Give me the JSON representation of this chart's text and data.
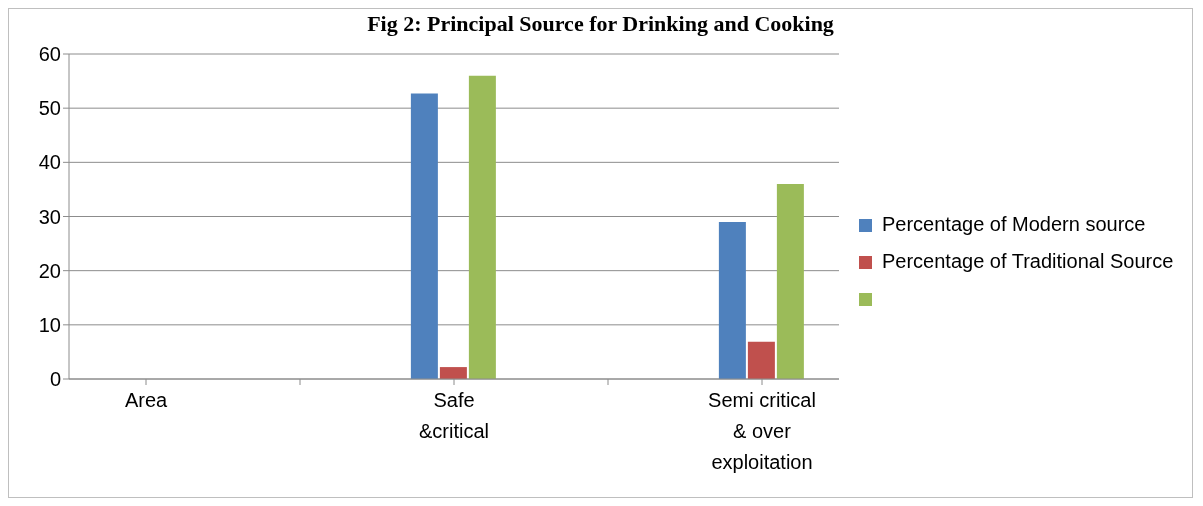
{
  "chart_data": {
    "type": "bar",
    "title": "Fig 2: Principal Source for Drinking and Cooking",
    "categories": [
      "Area",
      null,
      "Safe &critical",
      null,
      "Semi critical & over exploitation"
    ],
    "series": [
      {
        "name": "Percentage of Modern source",
        "color": "#4f81bd",
        "values": [
          null,
          null,
          52.7,
          null,
          29
        ]
      },
      {
        "name": "Percentage of Traditional Source",
        "color": "#c0504d",
        "values": [
          null,
          null,
          2.2,
          null,
          6.9
        ]
      },
      {
        "color": "#9bbb59",
        "values": [
          null,
          null,
          56,
          null,
          36
        ]
      }
    ],
    "ylim": [
      0,
      60
    ],
    "yticks": [
      0,
      10,
      20,
      30,
      40,
      50,
      60
    ],
    "grid": "y",
    "legend": "right"
  }
}
